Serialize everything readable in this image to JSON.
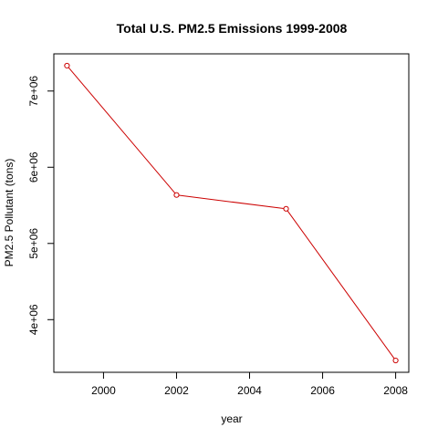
{
  "chart_data": {
    "type": "line",
    "title": "Total U.S. PM2.5 Emissions 1999-2008",
    "xlabel": "year",
    "ylabel": "PM2.5 Pollutant (tons)",
    "x": [
      1999,
      2002,
      2005,
      2008
    ],
    "series": [
      {
        "values": [
          7332967,
          5635780,
          5454703,
          3464206
        ],
        "color": "#cc0000"
      }
    ],
    "xlim": [
      1998.64,
      2008.36
    ],
    "ylim": [
      3309016,
      7488157
    ],
    "x_ticks": [
      2000,
      2002,
      2004,
      2006,
      2008
    ],
    "x_tick_labels": [
      "2000",
      "2002",
      "2004",
      "2006",
      "2008"
    ],
    "y_ticks": [
      4000000,
      5000000,
      6000000,
      7000000
    ],
    "y_tick_labels": [
      "4e+06",
      "5e+06",
      "6e+06",
      "7e+06"
    ],
    "grid": false,
    "markers": "open-circle",
    "line_color": "#cc0000",
    "axis_color": "#000000"
  }
}
